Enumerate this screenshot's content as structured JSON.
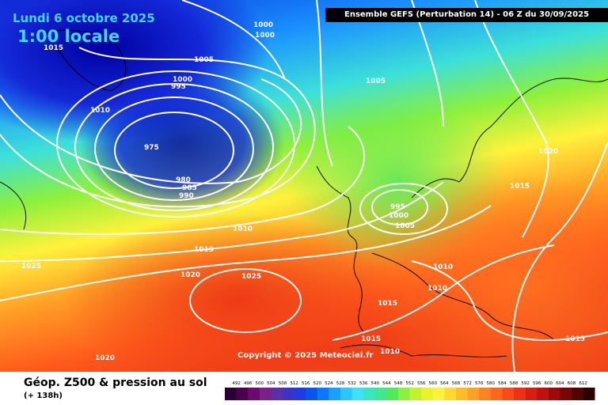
{
  "title": {
    "date": "Lundi 6 octobre 2025",
    "time": "1:00 locale"
  },
  "model_label": "Ensemble GEFS  (Perturbation 14)  -  06 Z du 30/09/2025",
  "copyright": "Copyright © 2025 Meteociel.fr",
  "caption": "Géop. Z500 & pression au sol",
  "lead_time": "(+ 138h)",
  "isobar_labels": [
    "1000",
    "1000",
    "1015",
    "1005",
    "1000",
    "995",
    "1010",
    "1005",
    "975",
    "980",
    "985",
    "990",
    "1020",
    "1015",
    "995",
    "1000",
    "1005",
    "1010",
    "1025",
    "1015",
    "1020",
    "1025",
    "1010",
    "1010",
    "1015",
    "1015",
    "1010",
    "1020",
    "1015"
  ],
  "scale": {
    "ticks": [
      "492",
      "496",
      "500",
      "504",
      "508",
      "512",
      "516",
      "520",
      "524",
      "528",
      "532",
      "536",
      "540",
      "544",
      "548",
      "552",
      "556",
      "560",
      "564",
      "568",
      "572",
      "576",
      "580",
      "584",
      "588",
      "592",
      "596",
      "600",
      "604",
      "608",
      "612"
    ],
    "colors": [
      "#2b0033",
      "#4a004f",
      "#6a0a6e",
      "#7a1f8c",
      "#5d2ea6",
      "#3d32c8",
      "#1e3ce0",
      "#0a55f0",
      "#0a78ff",
      "#1aa0ff",
      "#2dc4ff",
      "#3de2f2",
      "#36e8c0",
      "#3ee890",
      "#52e858",
      "#8cf03c",
      "#c2f22c",
      "#eaf22c",
      "#fff23c",
      "#ffd830",
      "#ffbc2a",
      "#ffa026",
      "#ff8222",
      "#ff661e",
      "#f84a1a",
      "#ec3216",
      "#d81e12",
      "#be120e",
      "#9c0a0a",
      "#780606",
      "#520404",
      "#2a0202"
    ]
  }
}
